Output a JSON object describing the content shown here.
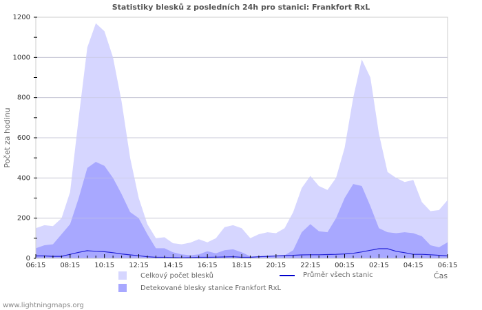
{
  "chart_data": {
    "type": "area",
    "title": "Statistiky blesků z posledních 24h pro stanici: Frankfort RxL",
    "xlabel": "Čas",
    "ylabel": "Počet za hodinu",
    "ylim": [
      0,
      1200
    ],
    "yticks": [
      0,
      200,
      400,
      600,
      800,
      1000,
      1200
    ],
    "xtick_labels": [
      "06:15",
      "08:15",
      "10:15",
      "12:15",
      "14:15",
      "16:15",
      "18:15",
      "20:15",
      "22:15",
      "00:15",
      "02:15",
      "04:15",
      "06:15"
    ],
    "grid": true,
    "legend_position": "bottom",
    "x": [
      "06:15",
      "06:45",
      "07:15",
      "07:45",
      "08:15",
      "08:45",
      "09:15",
      "09:45",
      "10:15",
      "10:45",
      "11:15",
      "11:45",
      "12:15",
      "12:45",
      "13:15",
      "13:45",
      "14:15",
      "14:45",
      "15:15",
      "15:45",
      "16:15",
      "16:45",
      "17:15",
      "17:45",
      "18:15",
      "18:45",
      "19:15",
      "19:45",
      "20:15",
      "20:45",
      "21:15",
      "21:45",
      "22:15",
      "22:45",
      "23:15",
      "23:45",
      "00:15",
      "00:45",
      "01:15",
      "01:45",
      "02:15",
      "02:45",
      "03:15",
      "03:45",
      "04:15",
      "04:45",
      "05:15",
      "05:45",
      "06:15"
    ],
    "series": [
      {
        "name": "Celkový počet blesků",
        "color": "#d6d6ff",
        "type": "area",
        "values": [
          150,
          165,
          160,
          200,
          330,
          700,
          1050,
          1170,
          1130,
          1000,
          780,
          500,
          300,
          170,
          100,
          105,
          75,
          70,
          78,
          95,
          80,
          100,
          155,
          165,
          150,
          100,
          120,
          130,
          125,
          150,
          230,
          350,
          410,
          360,
          340,
          400,
          550,
          800,
          990,
          900,
          620,
          430,
          400,
          380,
          390,
          280,
          235,
          240,
          290
        ]
      },
      {
        "name": "Detekované blesky stanice Frankfort RxL",
        "color": "#a8a8ff",
        "type": "area",
        "values": [
          50,
          65,
          70,
          120,
          170,
          300,
          450,
          480,
          460,
          400,
          320,
          230,
          200,
          120,
          50,
          50,
          30,
          20,
          15,
          20,
          35,
          25,
          40,
          45,
          30,
          10,
          10,
          12,
          10,
          15,
          40,
          130,
          170,
          135,
          130,
          200,
          300,
          370,
          360,
          260,
          150,
          130,
          125,
          130,
          125,
          110,
          65,
          55,
          80
        ]
      },
      {
        "name": "Průměr všech stanic",
        "color": "#0000cc",
        "type": "line",
        "values": [
          12,
          12,
          10,
          10,
          20,
          30,
          38,
          35,
          33,
          28,
          22,
          17,
          13,
          8,
          5,
          5,
          4,
          3,
          4,
          5,
          5,
          6,
          7,
          8,
          5,
          5,
          8,
          10,
          12,
          14,
          15,
          17,
          18,
          18,
          19,
          20,
          22,
          25,
          32,
          40,
          48,
          48,
          35,
          28,
          20,
          20,
          18,
          15,
          12
        ]
      }
    ]
  },
  "chart_title": "Statistiky blesků z posledních 24h pro stanici: Frankfort RxL",
  "legend": {
    "total": "Celkový počet blesků",
    "detected": "Detekované blesky stanice Frankfort RxL",
    "average": "Průměr všech stanic"
  },
  "footer": "www.lightningmaps.org"
}
